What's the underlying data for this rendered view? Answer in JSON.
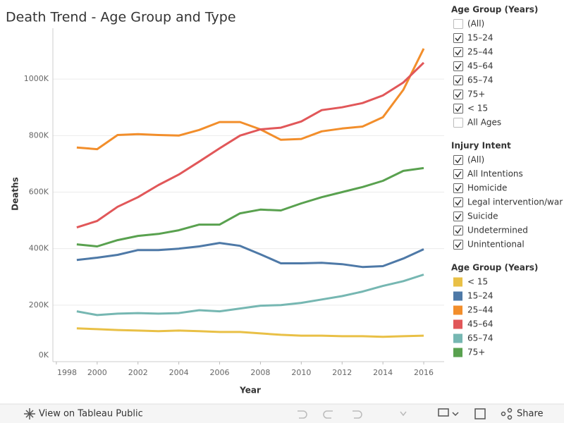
{
  "chart_data": {
    "type": "line",
    "title": "Death Trend - Age Group and Type",
    "x_label": "Year",
    "y_label": "Deaths",
    "x": [
      1999,
      2000,
      2001,
      2002,
      2003,
      2004,
      2005,
      2006,
      2007,
      2008,
      2009,
      2010,
      2011,
      2012,
      2013,
      2014,
      2015,
      2016
    ],
    "series": [
      {
        "name": "< 15",
        "color": "#e9c046",
        "values": [
          118000,
          115000,
          112000,
          110000,
          108000,
          110000,
          108000,
          105000,
          105000,
          100000,
          95000,
          92000,
          92000,
          90000,
          90000,
          88000,
          90000,
          92000
        ]
      },
      {
        "name": "15–24",
        "color": "#4e79a7",
        "values": [
          360000,
          368000,
          378000,
          395000,
          395000,
          400000,
          408000,
          420000,
          410000,
          380000,
          348000,
          348000,
          350000,
          345000,
          335000,
          338000,
          365000,
          398000
        ]
      },
      {
        "name": "25–44",
        "color": "#f28e2b",
        "values": [
          758000,
          752000,
          802000,
          805000,
          802000,
          800000,
          820000,
          848000,
          848000,
          822000,
          785000,
          788000,
          815000,
          825000,
          832000,
          865000,
          962000,
          1108000
        ]
      },
      {
        "name": "45–64",
        "color": "#e15759",
        "values": [
          475000,
          498000,
          548000,
          582000,
          625000,
          662000,
          708000,
          755000,
          800000,
          822000,
          828000,
          850000,
          890000,
          900000,
          915000,
          942000,
          988000,
          1058000
        ]
      },
      {
        "name": "65–74",
        "color": "#76b7b2",
        "values": [
          178000,
          165000,
          170000,
          172000,
          170000,
          172000,
          182000,
          178000,
          188000,
          198000,
          200000,
          208000,
          220000,
          232000,
          248000,
          268000,
          285000,
          308000
        ]
      },
      {
        "name": "75+",
        "color": "#59a14f",
        "values": [
          415000,
          408000,
          430000,
          445000,
          452000,
          465000,
          485000,
          485000,
          525000,
          538000,
          535000,
          560000,
          582000,
          600000,
          618000,
          640000,
          675000,
          685000
        ]
      }
    ],
    "xlim": [
      1997.83,
      2017
    ],
    "xticks": [
      1998,
      2000,
      2002,
      2004,
      2006,
      2008,
      2010,
      2012,
      2014,
      2016
    ],
    "ylim": [
      0,
      1180000
    ],
    "yticks": [
      {
        "value": 0,
        "label": "0K"
      },
      {
        "value": 200000,
        "label": "200K"
      },
      {
        "value": 400000,
        "label": "400K"
      },
      {
        "value": 600000,
        "label": "600K"
      },
      {
        "value": 800000,
        "label": "800K"
      },
      {
        "value": 1000000,
        "label": "1000K"
      }
    ],
    "grid": true,
    "legend_title": "Age Group (Years)"
  },
  "filters": [
    {
      "title": "Age Group (Years)",
      "options": [
        {
          "label": "(All)",
          "checked": false
        },
        {
          "label": "15–24",
          "checked": true
        },
        {
          "label": "25–44",
          "checked": true
        },
        {
          "label": "45–64",
          "checked": true
        },
        {
          "label": "65–74",
          "checked": true
        },
        {
          "label": "75+",
          "checked": true
        },
        {
          "label": "< 15",
          "checked": true
        },
        {
          "label": "All Ages",
          "checked": false
        }
      ]
    },
    {
      "title": "Injury Intent",
      "options": [
        {
          "label": "(All)",
          "checked": true
        },
        {
          "label": "All Intentions",
          "checked": true
        },
        {
          "label": "Homicide",
          "checked": true
        },
        {
          "label": "Legal intervention/war",
          "checked": true
        },
        {
          "label": "Suicide",
          "checked": true
        },
        {
          "label": "Undetermined",
          "checked": true
        },
        {
          "label": "Unintentional",
          "checked": true
        }
      ]
    }
  ],
  "toolbar": {
    "view_link": "View on Tableau Public",
    "share": "Share"
  }
}
